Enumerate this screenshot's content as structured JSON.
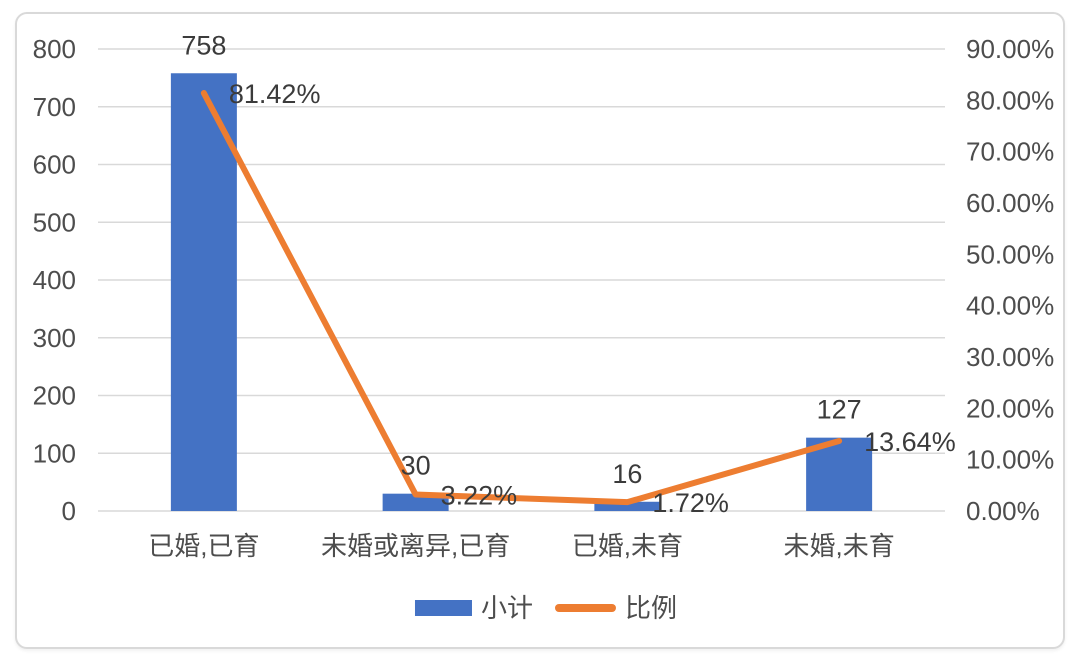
{
  "chart_data": {
    "type": "bar",
    "subtype": "combo-bar-line-dual-axis",
    "title": "",
    "xlabel": "",
    "ylabel": "",
    "grid": true,
    "legend_position": "bottom",
    "categories": [
      "已婚,已育",
      "未婚或离异,已育",
      "已婚,未育",
      "未婚,未育"
    ],
    "series": [
      {
        "name": "小计",
        "type": "bar",
        "axis": "left",
        "color": "#4472C4",
        "values": [
          758,
          30,
          16,
          127
        ],
        "data_labels": [
          "758",
          "30",
          "16",
          "127"
        ]
      },
      {
        "name": "比例",
        "type": "line",
        "axis": "right",
        "color": "#ED7D31",
        "values": [
          81.42,
          3.22,
          1.72,
          13.64
        ],
        "data_labels": [
          "81.42%",
          "3.22%",
          "1.72%",
          "13.64%"
        ]
      }
    ],
    "left_axis": {
      "min": 0,
      "max": 800,
      "step": 100,
      "ticks": [
        "800",
        "700",
        "600",
        "500",
        "400",
        "300",
        "200",
        "100",
        "0"
      ]
    },
    "right_axis": {
      "min": 0,
      "max": 90,
      "step": 10,
      "ticks": [
        "90.00%",
        "80.00%",
        "70.00%",
        "60.00%",
        "50.00%",
        "40.00%",
        "30.00%",
        "20.00%",
        "10.00%",
        "0.00%"
      ]
    }
  },
  "colors": {
    "bar": "#4472C4",
    "line": "#ED7D31",
    "gridline": "#d9d9d9",
    "tick_text": "#4d4d4d",
    "label_text": "#3b3b3b",
    "card_border": "#d9d9d9"
  }
}
